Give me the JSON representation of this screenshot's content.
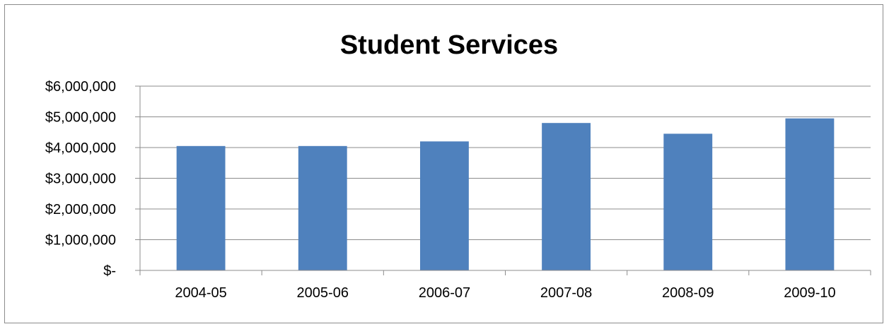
{
  "chart_data": {
    "type": "bar",
    "title": "Student Services",
    "categories": [
      "2004-05",
      "2005-06",
      "2006-07",
      "2007-08",
      "2008-09",
      "2009-10"
    ],
    "values": [
      4050000,
      4050000,
      4200000,
      4800000,
      4450000,
      4950000
    ],
    "ylim": [
      0,
      6000000
    ],
    "y_ticks": [
      0,
      1000000,
      2000000,
      3000000,
      4000000,
      5000000,
      6000000
    ],
    "y_tick_labels": [
      "$-",
      "$1,000,000",
      "$2,000,000",
      "$3,000,000",
      "$4,000,000",
      "$5,000,000",
      "$6,000,000"
    ],
    "bar_color": "#4f81bd",
    "grid": true,
    "legend": "none"
  }
}
